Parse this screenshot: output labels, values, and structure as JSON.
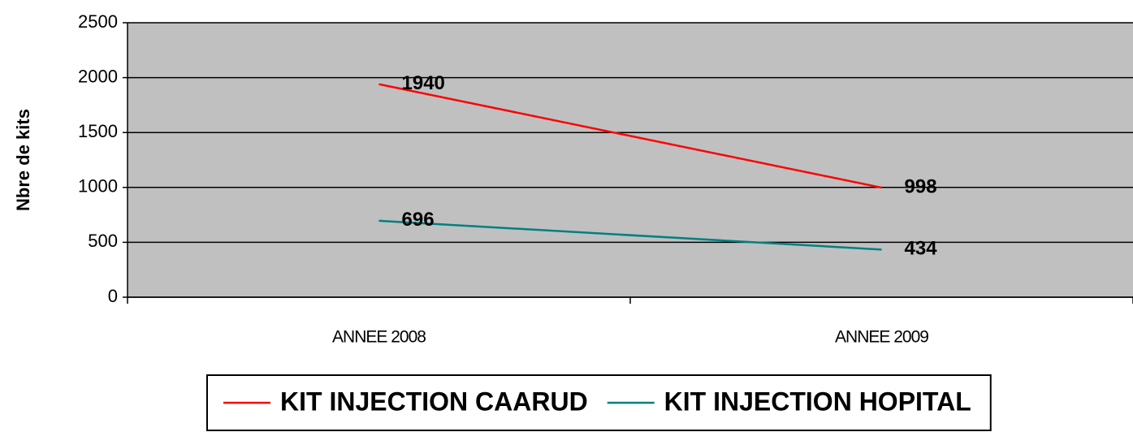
{
  "chart_data": {
    "type": "line",
    "y_label": "Nbre de kits",
    "categories": [
      "ANNEE 2008",
      "ANNEE 2009"
    ],
    "series": [
      {
        "name": "KIT INJECTION CAARUD",
        "color": "#ff0000",
        "values": [
          1940,
          998
        ]
      },
      {
        "name": "KIT INJECTION HOPITAL",
        "color": "#008080",
        "values": [
          696,
          434
        ]
      }
    ],
    "ylim": [
      0,
      2500
    ],
    "yticks": [
      0,
      500,
      1000,
      1500,
      2000,
      2500
    ],
    "grid": true,
    "legend": "bottom",
    "plot_background": "#c0c0c0"
  }
}
